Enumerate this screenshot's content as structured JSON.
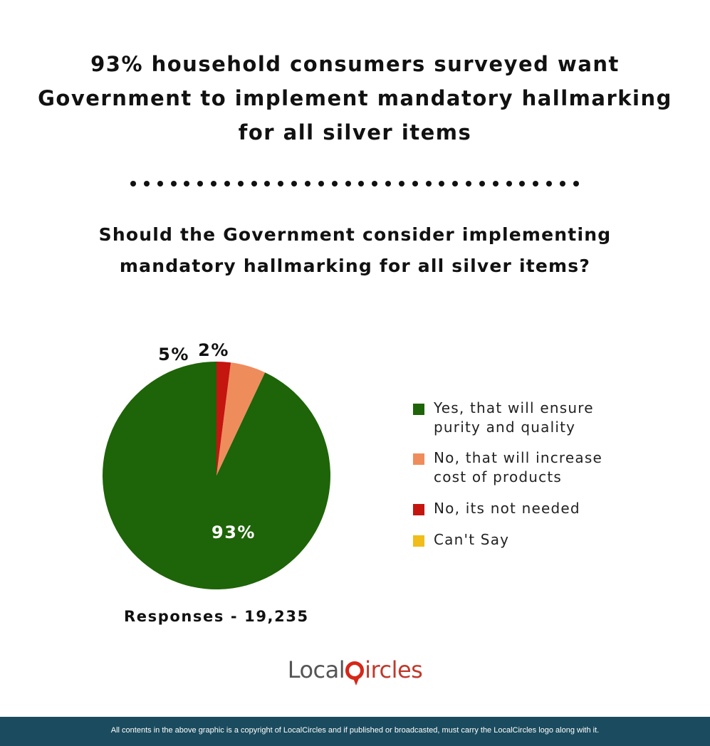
{
  "header": {
    "headline_lines": [
      "93% household consumers surveyed want",
      "Government to implement mandatory hallmarking",
      "for all silver items"
    ],
    "question_lines": [
      "Should the Government consider implementing",
      "mandatory hallmarking for all silver items?"
    ]
  },
  "chart_data": {
    "type": "pie",
    "categories": [
      "Yes, that will ensure purity and quality",
      "No, that will increase cost of products",
      "No, its not needed",
      "Can't Say"
    ],
    "values": [
      93,
      5,
      2,
      0
    ],
    "labels": [
      "93%",
      "5%",
      "2%",
      ""
    ],
    "colors": [
      "#1e6408",
      "#ef8c5c",
      "#c4150f",
      "#f0bd1a"
    ],
    "legend_position": "right"
  },
  "legend": [
    {
      "line1": "Yes, that will ensure",
      "line2": "purity and quality"
    },
    {
      "line1": "No, that will increase",
      "line2": "cost of products"
    },
    {
      "line1": "No, its not needed",
      "line2": ""
    },
    {
      "line1": "Can't Say",
      "line2": ""
    }
  ],
  "responses_text": "Responses - 19,235",
  "logo": {
    "part1": "Local",
    "part2": "ircles"
  },
  "footer_text": "All contents in the above graphic is a copyright of LocalCircles and if published or broadcasted, must carry the LocalCircles logo along with it."
}
